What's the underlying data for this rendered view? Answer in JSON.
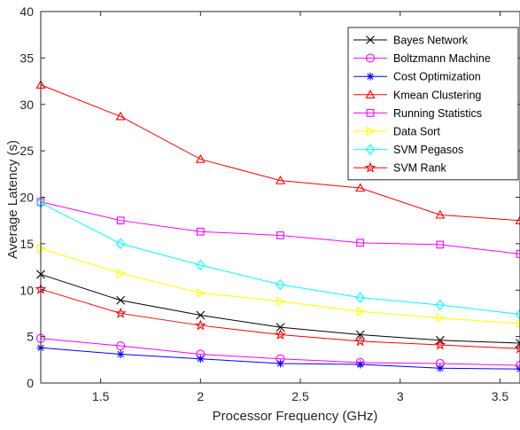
{
  "chart_data": {
    "type": "line",
    "xlabel": "Processor Frequency (GHz)",
    "ylabel": "Average Latency (s)",
    "xlim": [
      1.2,
      3.6
    ],
    "ylim": [
      0,
      40
    ],
    "x_ticks": [
      1.5,
      2,
      2.5,
      3,
      3.5
    ],
    "x_tick_labels": [
      "1.5",
      "2",
      "2.5",
      "3",
      "3.5"
    ],
    "y_ticks": [
      0,
      5,
      10,
      15,
      20,
      25,
      30,
      35,
      40
    ],
    "y_tick_labels": [
      "0",
      "5",
      "10",
      "15",
      "20",
      "25",
      "30",
      "35",
      "40"
    ],
    "grid": false,
    "legend_position": "top-right",
    "x": [
      1.2,
      1.6,
      2.0,
      2.4,
      2.8,
      3.2,
      3.6
    ],
    "series": [
      {
        "name": "Bayes Network",
        "color": "#000000",
        "marker": "x",
        "values": [
          11.7,
          8.9,
          7.3,
          6.0,
          5.2,
          4.6,
          4.3
        ]
      },
      {
        "name": "Boltzmann Machine",
        "color": "#ff00ff",
        "marker": "circle",
        "values": [
          4.8,
          4.0,
          3.1,
          2.6,
          2.2,
          2.1,
          1.9
        ]
      },
      {
        "name": "Cost Optimization",
        "color": "#0000ff",
        "marker": "asterisk",
        "values": [
          3.8,
          3.1,
          2.6,
          2.1,
          2.0,
          1.6,
          1.5
        ]
      },
      {
        "name": "Kmean Clustering",
        "color": "#ff0000",
        "marker": "triangle-up",
        "values": [
          32.1,
          28.7,
          24.1,
          21.8,
          21.0,
          18.1,
          17.5
        ]
      },
      {
        "name": "Running Statistics",
        "color": "#ff00ff",
        "marker": "square",
        "values": [
          19.5,
          17.5,
          16.3,
          15.9,
          15.1,
          14.9,
          13.9
        ]
      },
      {
        "name": "Data Sort",
        "color": "#ffff00",
        "marker": "triangle-right",
        "values": [
          14.5,
          11.8,
          9.7,
          8.8,
          7.7,
          7.0,
          6.4
        ]
      },
      {
        "name": "SVM Pegasos",
        "color": "#00ffff",
        "marker": "diamond",
        "values": [
          19.4,
          15.0,
          12.7,
          10.6,
          9.2,
          8.4,
          7.4
        ]
      },
      {
        "name": "SVM Rank",
        "color": "#ff0000",
        "marker": "star",
        "values": [
          10.1,
          7.5,
          6.2,
          5.2,
          4.5,
          4.1,
          3.7
        ]
      }
    ],
    "series_line_colors": [
      "#000000",
      "#ff00ff",
      "#0000ff",
      "#ff0000",
      "#ff00ff",
      "#ffff00",
      "#00ffff",
      "#ff0000"
    ],
    "axis_color": "#262626"
  }
}
